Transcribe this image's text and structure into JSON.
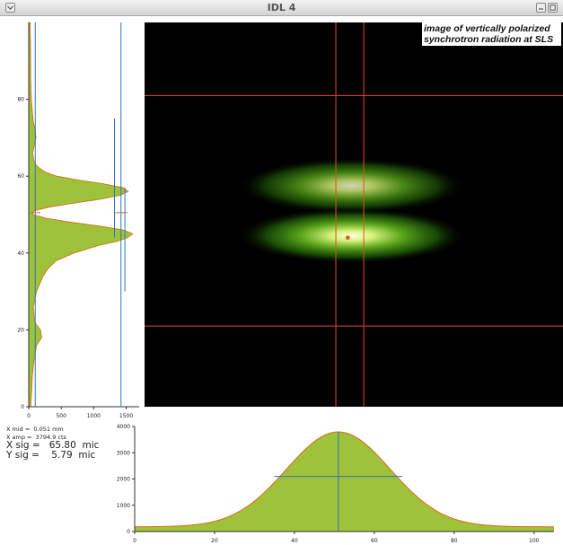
{
  "window": {
    "title": "IDL 4",
    "menu_icon": "chevron-down-icon",
    "minimize_icon": "minimize-icon",
    "maximize_icon": "maximize-icon"
  },
  "image_title_line1": "image of vertically polarized",
  "image_title_line2": "synchrotron radiation at SLS",
  "readout": {
    "x_mid": "X mid =  0.051 mm",
    "x_amp": "X amp =  3794.9 cts",
    "x_sig": "X sig =   65.80  mic",
    "y_sig": "Y sig =    5.79  mic"
  },
  "colors": {
    "fill": "#9ec23a",
    "fit": "#e06a1a",
    "marker": "#2f74c0",
    "crosshair": "#e0501a",
    "axis": "#333333"
  },
  "chart_data": [
    {
      "type": "area",
      "orientation": "vertical-profile",
      "xlim": [
        0,
        1700
      ],
      "ylim": [
        0,
        100
      ],
      "x_ticks": [
        0,
        500,
        1000,
        1500
      ],
      "y_ticks": [
        0,
        20,
        40,
        60,
        80
      ],
      "series": [
        {
          "y": [
            0,
            4,
            8,
            12,
            16,
            18,
            20,
            22,
            26,
            30,
            34,
            36,
            38,
            40,
            42,
            43,
            44,
            45,
            46,
            47,
            48,
            49,
            50,
            51,
            52,
            53,
            54,
            55,
            56,
            57,
            58,
            59,
            60,
            61,
            62,
            63,
            64,
            66,
            68,
            70,
            72,
            74,
            76,
            78,
            80,
            85,
            90,
            95,
            100
          ],
          "x": [
            30,
            45,
            55,
            80,
            120,
            200,
            180,
            90,
            70,
            120,
            220,
            300,
            420,
            700,
            1080,
            1350,
            1520,
            1600,
            1450,
            1100,
            650,
            280,
            60,
            80,
            330,
            700,
            1100,
            1400,
            1530,
            1450,
            1150,
            760,
            430,
            260,
            170,
            110,
            80,
            60,
            85,
            110,
            100,
            70,
            60,
            50,
            40,
            30,
            30,
            25,
            20
          ]
        }
      ],
      "markers": {
        "vertical_lines_x": [
          100,
          1320,
          1420
        ],
        "error_bar_y_range": [
          30,
          57
        ],
        "center_y": 50.5
      }
    },
    {
      "type": "area",
      "orientation": "horizontal-profile",
      "xlim": [
        0,
        105
      ],
      "ylim": [
        0,
        4000
      ],
      "x_ticks": [
        0,
        20,
        40,
        60,
        80,
        100
      ],
      "y_ticks": [
        0,
        1000,
        2000,
        3000,
        4000
      ],
      "series": [
        {
          "name": "",
          "gauss": {
            "amplitude": 3794.9,
            "center": 51,
            "sigma": 13,
            "baseline": 180
          }
        }
      ],
      "markers": {
        "center_x": 51,
        "half_width_x": [
          35,
          67
        ],
        "half_width_y": 2100
      }
    }
  ],
  "image": {
    "xlim": [
      0,
      105
    ],
    "ylim": [
      0,
      100
    ],
    "crosshair_x": [
      48,
      55
    ],
    "crosshair_y": [
      21,
      81
    ],
    "lobes": [
      {
        "cx": 52,
        "cy": 44.5,
        "sx": 11,
        "sy": 2.8,
        "peak": 1.0
      },
      {
        "cx": 52,
        "cy": 57.5,
        "sx": 11,
        "sy": 2.8,
        "peak": 0.82
      }
    ],
    "peak_marker": {
      "x": 51,
      "y": 44
    }
  }
}
